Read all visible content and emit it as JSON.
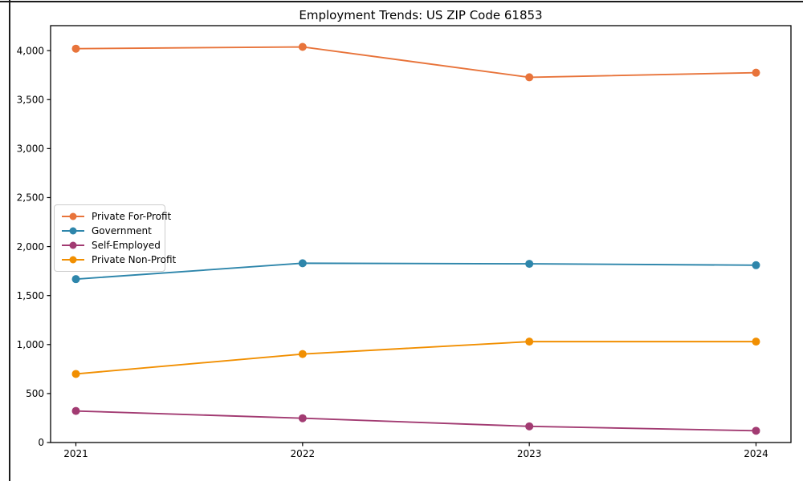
{
  "chart_data": {
    "type": "line",
    "title": "Employment Trends: US ZIP Code 61853",
    "x": [
      "2021",
      "2022",
      "2023",
      "2024"
    ],
    "series": [
      {
        "name": "Private For-Profit",
        "color": "#E8743B",
        "values": [
          4020,
          4038,
          3728,
          3775
        ]
      },
      {
        "name": "Government",
        "color": "#2E86AB",
        "values": [
          1668,
          1830,
          1824,
          1810
        ]
      },
      {
        "name": "Self-Employed",
        "color": "#A23B72",
        "values": [
          322,
          248,
          165,
          120
        ]
      },
      {
        "name": "Private Non-Profit",
        "color": "#F18F01",
        "values": [
          700,
          903,
          1030,
          1030
        ]
      }
    ],
    "xlabel": "",
    "ylabel": "",
    "ylim": [
      0,
      4255
    ],
    "yticks": [
      0,
      500,
      1000,
      1500,
      2000,
      2500,
      3000,
      3500,
      4000
    ],
    "ytick_labels": [
      "0",
      "500",
      "1,000",
      "1,500",
      "2,000",
      "2,500",
      "3,000",
      "3,500",
      "4,000"
    ],
    "grid": false,
    "marker": "circle",
    "legend_position": "center-left",
    "axis_color": "#000000",
    "background_color": "#ffffff"
  }
}
